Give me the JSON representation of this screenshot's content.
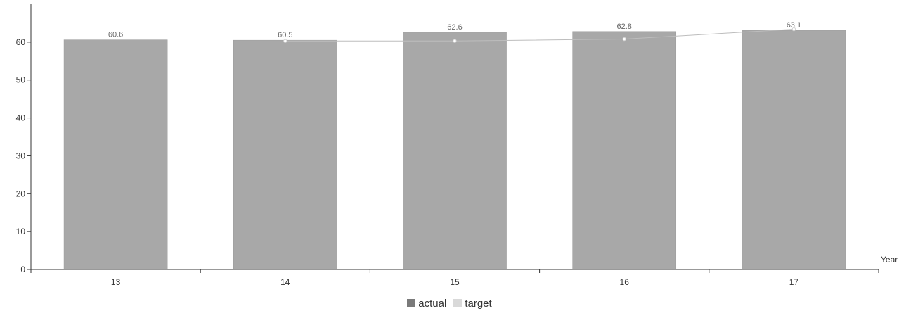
{
  "chart_data": {
    "type": "bar",
    "categories": [
      "13",
      "14",
      "15",
      "16",
      "17"
    ],
    "series": [
      {
        "name": "actual",
        "kind": "bar",
        "color": "#a8a8a8",
        "values": [
          60.6,
          60.5,
          62.6,
          62.8,
          63.1
        ],
        "labels": [
          "60.6",
          "60.5",
          "62.6",
          "62.8",
          "63.1"
        ]
      },
      {
        "name": "target",
        "kind": "line",
        "color": "#cfcfcf",
        "values": [
          null,
          60.3,
          60.3,
          60.8,
          63.4
        ]
      }
    ],
    "xlabel": "Year",
    "ylabel": "",
    "ylim": [
      0,
      70
    ],
    "yticks": [
      "0",
      "10",
      "20",
      "30",
      "40",
      "50",
      "60"
    ],
    "legend": "bottom-center",
    "grid": false
  },
  "colors": {
    "axis": "#333333",
    "bar": "#a8a8a8",
    "line": "#cfcfcf"
  }
}
